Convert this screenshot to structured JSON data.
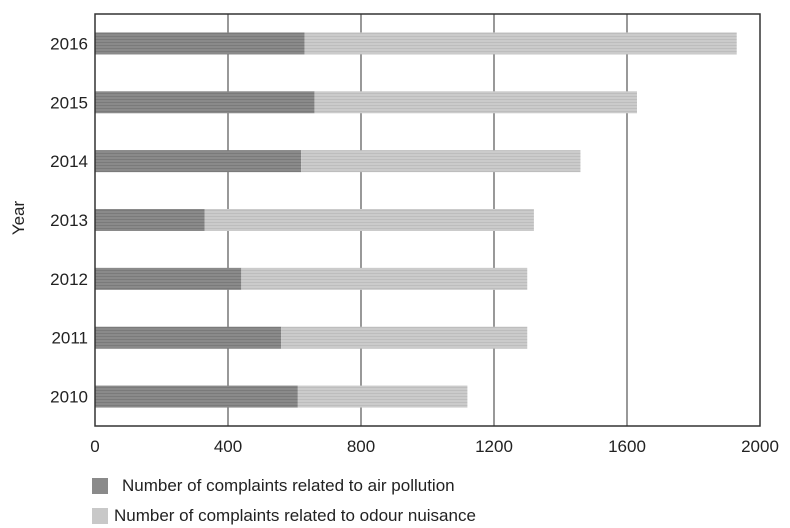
{
  "chart_data": {
    "type": "bar",
    "orientation": "horizontal",
    "stacked": true,
    "ylabel": "Year",
    "xlabel": "",
    "categories": [
      "2016",
      "2015",
      "2014",
      "2013",
      "2012",
      "2011",
      "2010"
    ],
    "xlim": [
      0,
      2000
    ],
    "xticks": [
      "0",
      "400",
      "800",
      "1200",
      "1600",
      "2000"
    ],
    "xtick_values": [
      0,
      400,
      800,
      1200,
      1600,
      2000
    ],
    "grid": "vertical",
    "legend_position": "bottom",
    "series": [
      {
        "name": "Number of complaints related to air pollution",
        "color": "#8a8a8a",
        "values": [
          630,
          660,
          620,
          330,
          440,
          560,
          610
        ]
      },
      {
        "name": "Number of complaints related to odour nuisance",
        "color": "#c8c8c8",
        "values": [
          1300,
          970,
          840,
          990,
          860,
          740,
          510
        ]
      }
    ]
  }
}
